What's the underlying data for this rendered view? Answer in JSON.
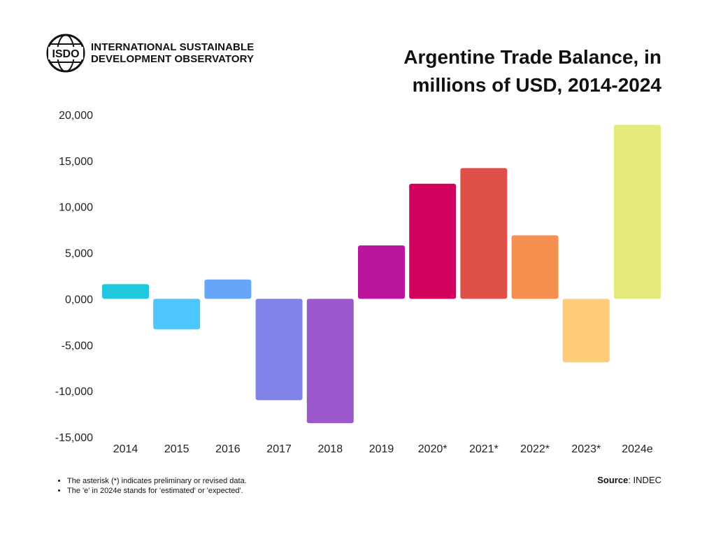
{
  "header": {
    "org_line1": "INTERNATIONAL SUSTAINABLE",
    "org_line2": "DEVELOPMENT OBSERVATORY",
    "logo_text": "ISDO",
    "title": "Argentine Trade Balance, in millions of USD, 2014-2024"
  },
  "chart_data": {
    "type": "bar",
    "categories": [
      "2014",
      "2015",
      "2016",
      "2017",
      "2018",
      "2019",
      "2020*",
      "2021*",
      "2022*",
      "2023*",
      "2024e"
    ],
    "values": [
      1600,
      -3300,
      2100,
      -11000,
      -13500,
      5800,
      12500,
      14200,
      6900,
      -6900,
      18900
    ],
    "colors": [
      "#1fc8dc",
      "#4cc6fb",
      "#66a6f8",
      "#7f82e7",
      "#9b59cd",
      "#bb159e",
      "#d0005c",
      "#df5049",
      "#f59050",
      "#fecc79",
      "#e5e87a"
    ],
    "ylim": [
      -15000,
      20000
    ],
    "yticks": [
      20000,
      15000,
      10000,
      5000,
      0,
      -5000,
      -10000,
      -15000
    ],
    "ytick_labels": [
      "20,000",
      "15,000",
      "10,000",
      "5,000",
      "0,000",
      "-5,000",
      "-10,000",
      "-15,000"
    ],
    "grid": false,
    "xlabel": "",
    "ylabel": ""
  },
  "footer": {
    "notes": [
      "The asterisk (*) indicates preliminary or revised data.",
      "The 'e' in 2024e stands for 'estimated' or 'expected'."
    ],
    "source_label": "Source",
    "source_value": ": INDEC"
  }
}
